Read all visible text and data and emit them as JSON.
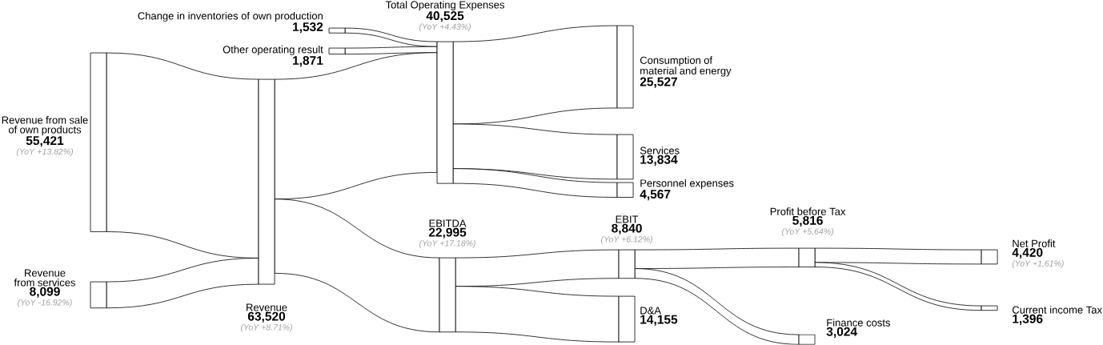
{
  "chart_data": {
    "type": "other",
    "categories": [
      "Change in inventories of own production",
      "Other operating result",
      "Revenue from sale of own products",
      "Revenue from services",
      "Revenue",
      "Total Operating Expenses",
      "Consumption of material and energy",
      "Services",
      "Personnel expenses",
      "EBITDA",
      "EBIT",
      "D&A",
      "Profit before Tax",
      "Finance costs",
      "Net Profit",
      "Current income Tax"
    ],
    "values": [
      1532,
      1871,
      55421,
      8099,
      63520,
      40525,
      25527,
      13834,
      4567,
      22995,
      8840,
      14155,
      5816,
      3024,
      4420,
      1396
    ],
    "value_labels": [
      "1,532",
      "1,871",
      "55,421",
      "8,099",
      "63,520",
      "40,525",
      "25,527",
      "13,834",
      "4,567",
      "22,995",
      "8,840",
      "14,155",
      "5,816",
      "3,024",
      "4,420",
      "1,396"
    ],
    "annotations": [
      "(YoY +13.82%)",
      "(YoY -16.92%)",
      "(YoY +8.71%)",
      "(YoY +4.43%)",
      "(YoY +17.18%)",
      "(YoY +6.12%)",
      "(YoY +5,64%)",
      "(YoY +1,61%)"
    ]
  }
}
